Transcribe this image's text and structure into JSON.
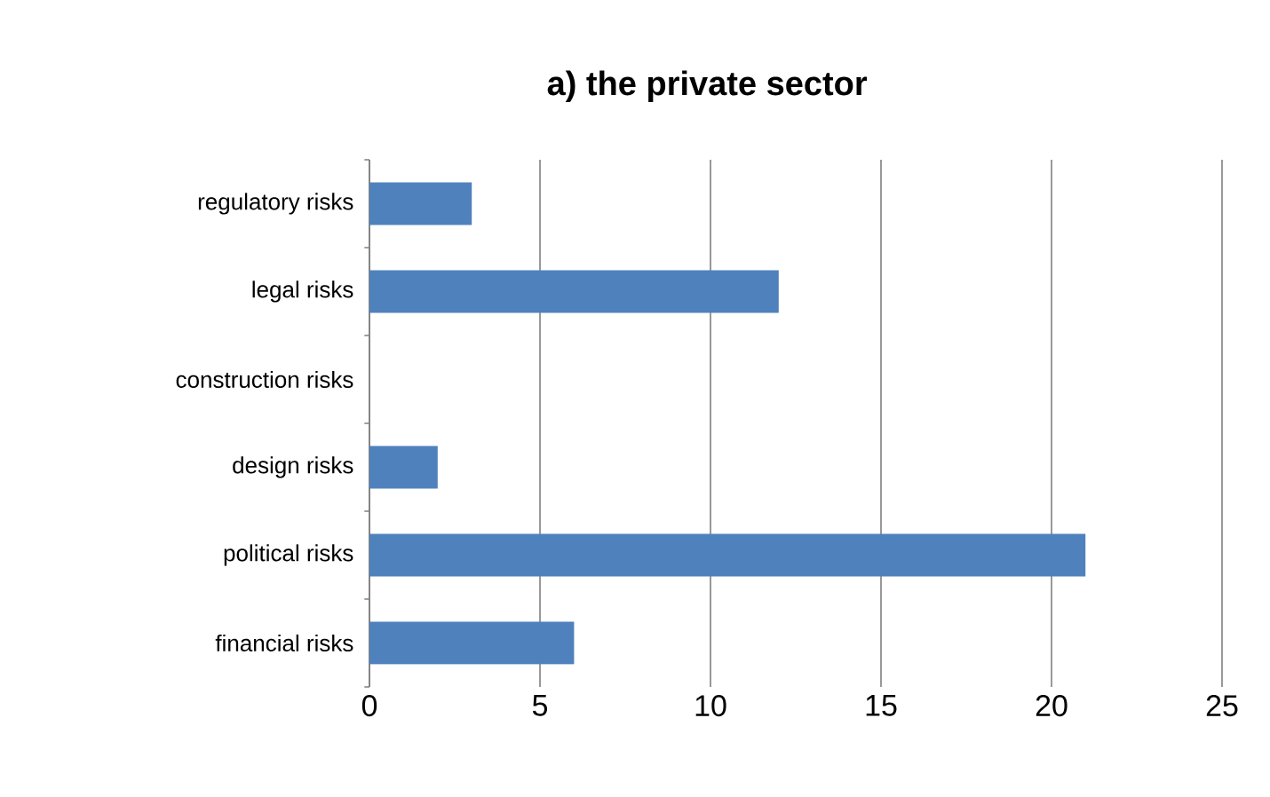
{
  "chart_data": {
    "type": "bar",
    "orientation": "horizontal",
    "title": "a) the private sector",
    "categories": [
      "regulatory risks",
      "legal risks",
      "construction risks",
      "design risks",
      "political risks",
      "financial risks"
    ],
    "values": [
      3,
      12,
      0,
      2,
      21,
      6
    ],
    "color": "#4f81bd",
    "xlim": [
      0,
      25
    ],
    "xticks": [
      0,
      5,
      10,
      15,
      20,
      25
    ],
    "grid": "x"
  }
}
